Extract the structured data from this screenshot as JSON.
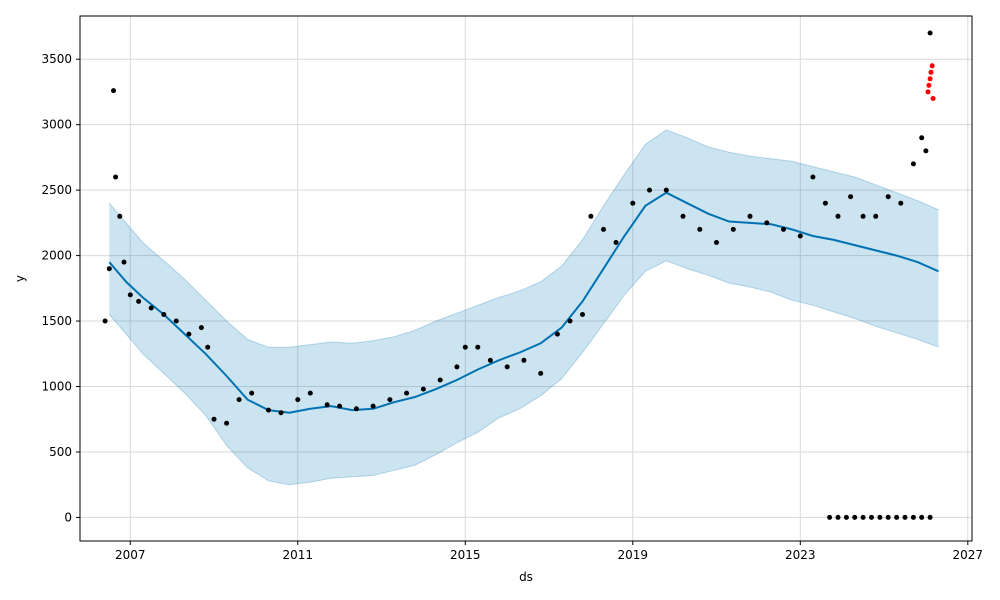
{
  "chart_data": {
    "type": "line",
    "title": "",
    "xlabel": "ds",
    "ylabel": "y",
    "grid": true,
    "xlim": [
      2005.8,
      2027.1
    ],
    "ylim": [
      -180,
      3830
    ],
    "x_ticks": [
      2007,
      2011,
      2015,
      2019,
      2023,
      2027
    ],
    "y_ticks": [
      0,
      500,
      1000,
      1500,
      2000,
      2500,
      3000,
      3500
    ],
    "colors": {
      "forecast": "#0072B2",
      "interval": "#0072B2",
      "observed": "#000000",
      "highlight": "#ff0000"
    },
    "forecast": {
      "x": [
        2006.5,
        2006.9,
        2007.3,
        2007.8,
        2008.3,
        2008.8,
        2009.3,
        2009.8,
        2010.3,
        2010.8,
        2011.3,
        2011.8,
        2012.3,
        2012.8,
        2013.3,
        2013.8,
        2014.3,
        2014.8,
        2015.3,
        2015.8,
        2016.3,
        2016.8,
        2017.3,
        2017.8,
        2018.3,
        2018.8,
        2019.3,
        2019.8,
        2020.3,
        2020.8,
        2021.3,
        2021.8,
        2022.3,
        2022.8,
        2023.3,
        2023.8,
        2024.3,
        2024.8,
        2025.3,
        2025.8,
        2026.3
      ],
      "yhat": [
        1950,
        1800,
        1680,
        1550,
        1400,
        1250,
        1080,
        900,
        820,
        800,
        830,
        850,
        820,
        830,
        880,
        920,
        980,
        1050,
        1130,
        1200,
        1260,
        1330,
        1450,
        1650,
        1900,
        2150,
        2380,
        2480,
        2400,
        2320,
        2260,
        2250,
        2240,
        2200,
        2150,
        2120,
        2080,
        2040,
        2000,
        1950,
        1880
      ],
      "lower": [
        1550,
        1400,
        1250,
        1100,
        950,
        780,
        550,
        380,
        280,
        250,
        270,
        300,
        310,
        320,
        360,
        400,
        480,
        570,
        650,
        760,
        830,
        930,
        1060,
        1260,
        1480,
        1700,
        1880,
        1960,
        1900,
        1850,
        1790,
        1760,
        1720,
        1660,
        1620,
        1570,
        1520,
        1460,
        1410,
        1360,
        1300
      ],
      "upper": [
        2400,
        2250,
        2100,
        1960,
        1820,
        1660,
        1500,
        1360,
        1300,
        1300,
        1320,
        1340,
        1330,
        1350,
        1380,
        1430,
        1500,
        1560,
        1620,
        1680,
        1730,
        1800,
        1920,
        2120,
        2380,
        2620,
        2850,
        2960,
        2900,
        2830,
        2790,
        2760,
        2740,
        2720,
        2680,
        2640,
        2600,
        2540,
        2480,
        2420,
        2350
      ]
    },
    "observed": {
      "x": [
        2006.4,
        2006.5,
        2006.6,
        2006.65,
        2006.75,
        2006.85,
        2007.0,
        2007.2,
        2007.5,
        2007.8,
        2008.1,
        2008.4,
        2008.7,
        2008.85,
        2009.0,
        2009.3,
        2009.6,
        2009.9,
        2010.3,
        2010.6,
        2011.0,
        2011.3,
        2011.7,
        2012.0,
        2012.4,
        2012.8,
        2013.2,
        2013.6,
        2014.0,
        2014.4,
        2014.8,
        2015.0,
        2015.3,
        2015.6,
        2016.0,
        2016.4,
        2016.8,
        2017.2,
        2017.5,
        2017.8,
        2018.0,
        2018.3,
        2018.6,
        2019.0,
        2019.4,
        2019.8,
        2020.2,
        2020.6,
        2021.0,
        2021.4,
        2021.8,
        2022.2,
        2022.6,
        2023.0,
        2023.3,
        2023.6,
        2023.9,
        2024.2,
        2024.5,
        2024.8,
        2025.1,
        2025.4,
        2025.7,
        2025.9,
        2026.0,
        2026.1
      ],
      "y": [
        1500,
        1900,
        3260,
        2600,
        2300,
        1950,
        1700,
        1650,
        1600,
        1550,
        1500,
        1400,
        1450,
        1300,
        750,
        720,
        900,
        950,
        820,
        800,
        900,
        950,
        860,
        850,
        830,
        850,
        900,
        950,
        980,
        1050,
        1150,
        1300,
        1300,
        1200,
        1150,
        1200,
        1100,
        1400,
        1500,
        1550,
        2300,
        2200,
        2100,
        2400,
        2500,
        2500,
        2300,
        2200,
        2100,
        2200,
        2300,
        2250,
        2200,
        2150,
        2600,
        2400,
        2300,
        2450,
        2300,
        2300,
        2450,
        2400,
        2700,
        2900,
        2800,
        3700
      ]
    },
    "near_zero": {
      "x": [
        2023.7,
        2023.9,
        2024.1,
        2024.3,
        2024.5,
        2024.7,
        2024.9,
        2025.1,
        2025.3,
        2025.5,
        2025.7,
        2025.9,
        2026.1
      ],
      "y": [
        0,
        0,
        0,
        0,
        0,
        0,
        0,
        0,
        0,
        0,
        0,
        0,
        0
      ]
    },
    "highlight": {
      "x": [
        2026.05,
        2026.07,
        2026.1,
        2026.12,
        2026.15,
        2026.17
      ],
      "y": [
        3250,
        3300,
        3350,
        3400,
        3450,
        3200
      ]
    }
  }
}
